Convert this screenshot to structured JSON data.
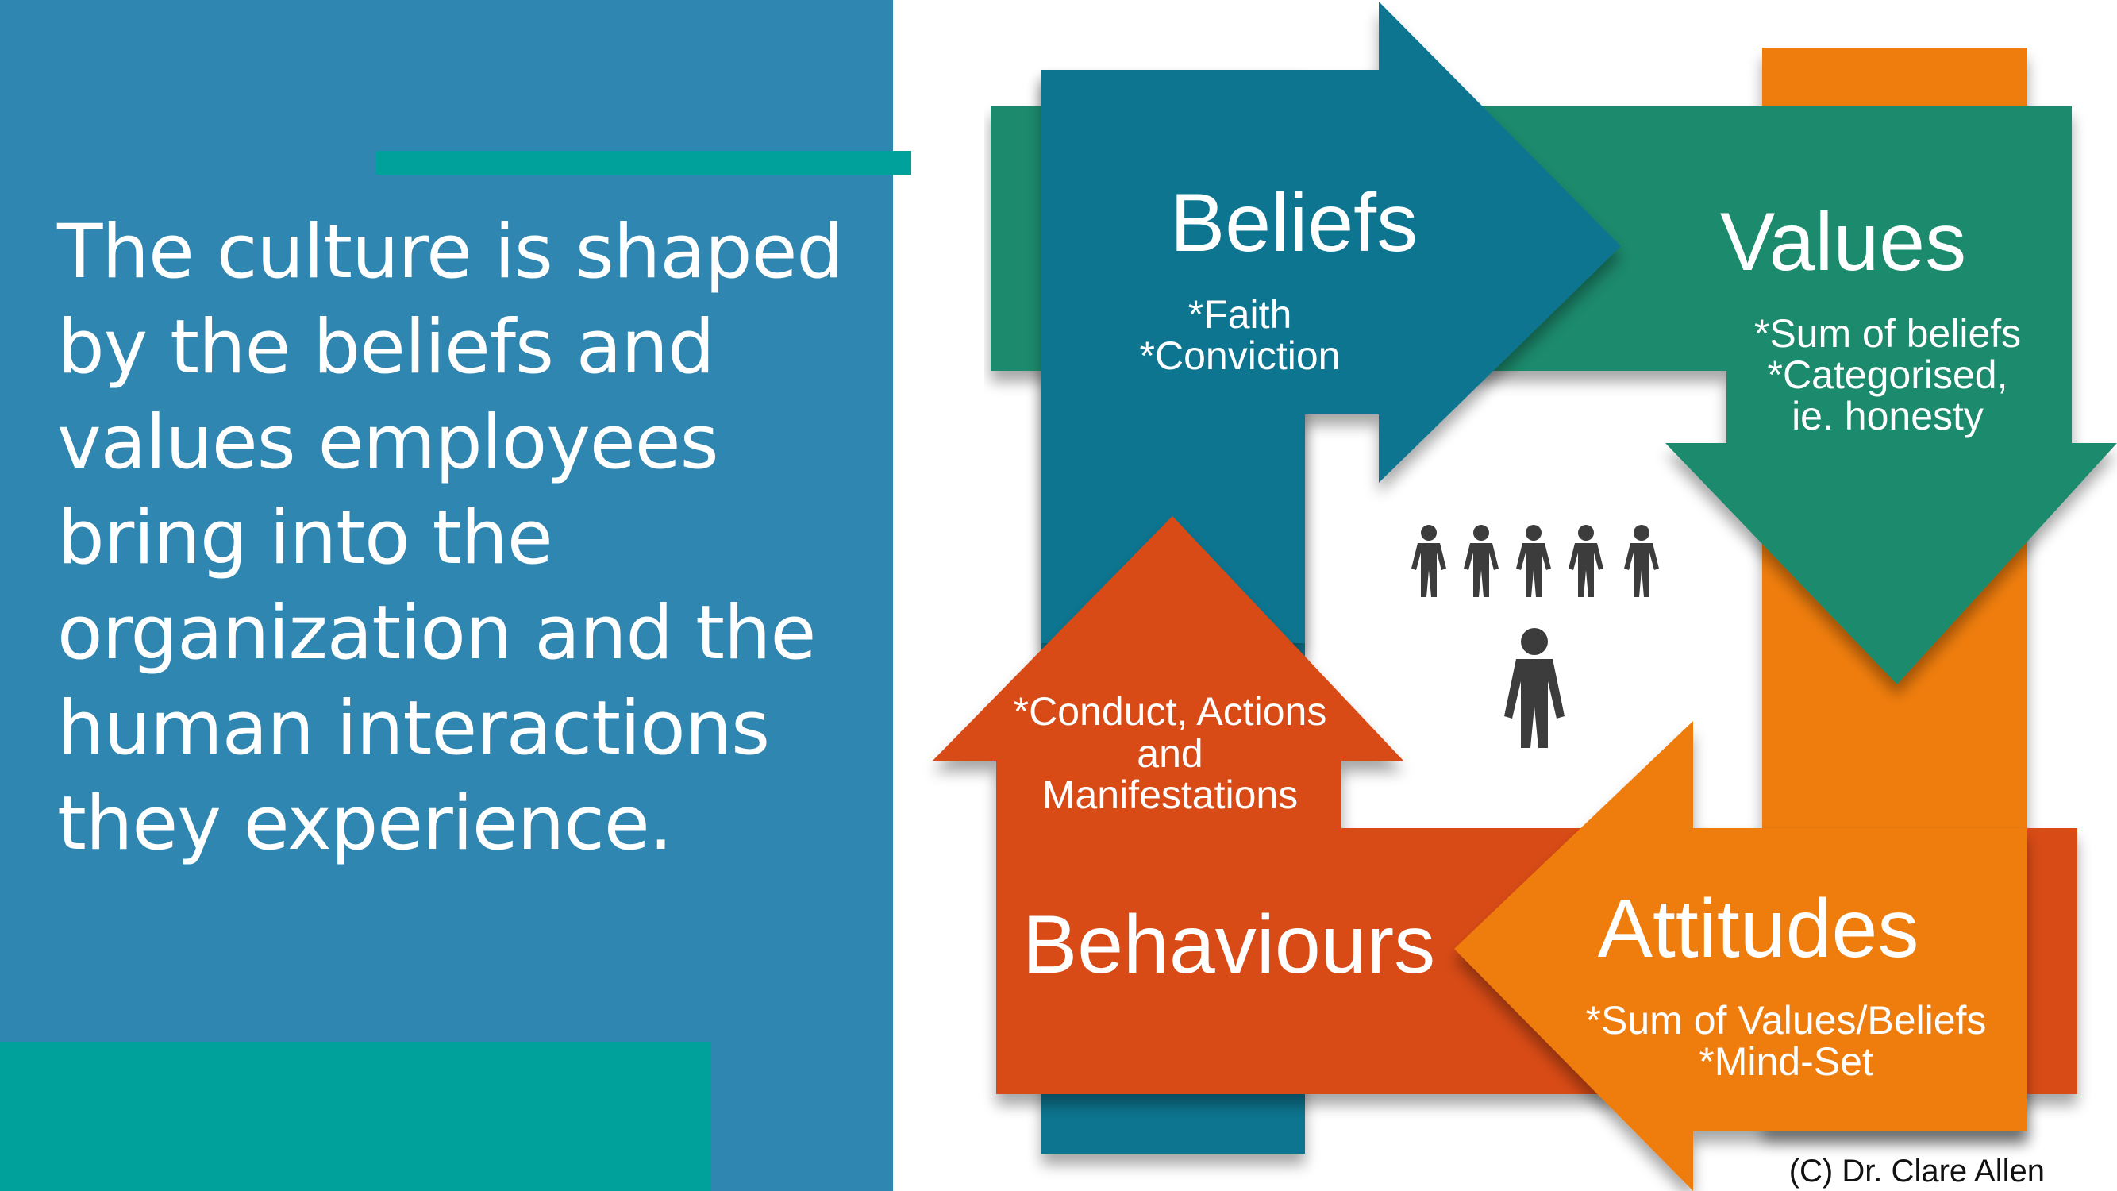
{
  "slide": {
    "headline_lines": [
      "The culture is shaped",
      "by the beliefs and",
      "values employees",
      "bring into the",
      "organization and the",
      "human interactions",
      "they experience."
    ]
  },
  "diagram": {
    "beliefs": {
      "title": "Beliefs",
      "items": [
        "*Faith",
        "*Conviction"
      ],
      "color": "#0c7490"
    },
    "values": {
      "title": "Values",
      "items": [
        "*Sum of beliefs",
        "*Categorised,",
        "ie. honesty"
      ],
      "color": "#1f8a6c"
    },
    "attitudes": {
      "title": "Attitudes",
      "items": [
        "*Sum of Values/Beliefs",
        "*Mind-Set"
      ],
      "color": "#ef7d0b"
    },
    "behaviours": {
      "title": "Behaviours",
      "items": [
        "*Conduct, Actions",
        "and",
        "Manifestations"
      ],
      "color": "#d84b16"
    },
    "people_icon": "group-of-people-icon",
    "credit": "(C) Dr. Clare Allen"
  },
  "colors": {
    "left_panel": "#2e86b1",
    "accent": "#00a19b",
    "people": "#3c3c3c"
  }
}
